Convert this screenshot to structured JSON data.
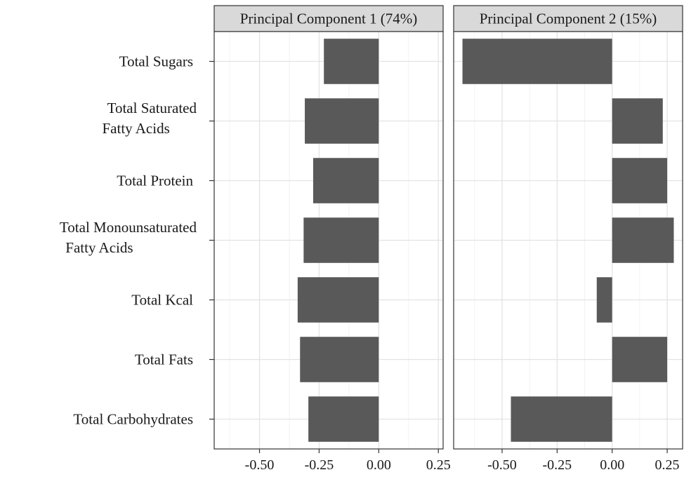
{
  "chart_data": {
    "type": "bar",
    "orientation": "horizontal",
    "categories": [
      "Total Sugars",
      "Total Saturated\nFatty Acids",
      "Total Protein",
      "Total Monounsaturated\nFatty Acids",
      "Total Kcal",
      "Total Fats",
      "Total Carbohydrates"
    ],
    "panels": [
      {
        "title": "Principal Component 1 (74%)",
        "values": [
          -0.23,
          -0.31,
          -0.275,
          -0.315,
          -0.34,
          -0.33,
          -0.295
        ],
        "xlim": [
          -0.69,
          0.27
        ],
        "xticks": [
          -0.5,
          -0.25,
          0.0,
          0.25
        ],
        "xtick_labels": [
          "-0.50",
          "-0.25",
          "0.00",
          "0.25"
        ]
      },
      {
        "title": "Principal Component 2 (15%)",
        "values": [
          -0.68,
          0.23,
          0.25,
          0.28,
          -0.07,
          0.25,
          -0.46
        ],
        "xlim": [
          -0.72,
          0.32
        ],
        "xticks": [
          -0.5,
          -0.25,
          0.0,
          0.25
        ],
        "xtick_labels": [
          "-0.50",
          "-0.25",
          "0.00",
          "0.25"
        ]
      }
    ],
    "bar_color": "#595959",
    "grid": true,
    "legend": "none",
    "xlabel": "",
    "ylabel": ""
  }
}
